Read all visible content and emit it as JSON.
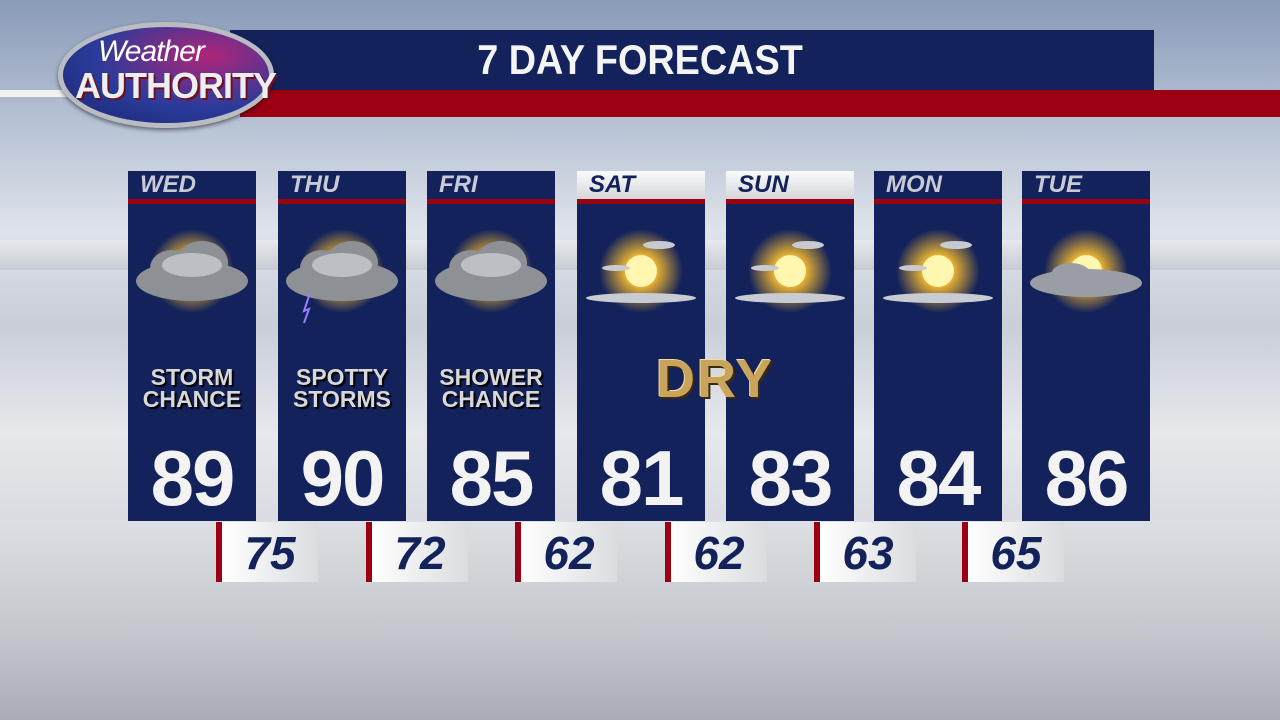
{
  "header": {
    "logo_line1": "Weather",
    "logo_line2": "AUTHORITY",
    "title": "7 DAY FORECAST"
  },
  "colors": {
    "navy": "#13225a",
    "red": "#9b0012",
    "gold": "#c9a45c"
  },
  "days": [
    {
      "day": "WED",
      "icon": "storm-cloud-sun-icon",
      "cond1": "STORM",
      "cond2": "CHANCE",
      "high": "89",
      "low": "75",
      "header_style": "dark"
    },
    {
      "day": "THU",
      "icon": "thunderstorm-sun-icon",
      "cond1": "SPOTTY",
      "cond2": "STORMS",
      "high": "90",
      "low": "72",
      "header_style": "dark"
    },
    {
      "day": "FRI",
      "icon": "rain-cloud-sun-icon",
      "cond1": "SHOWER",
      "cond2": "CHANCE",
      "high": "85",
      "low": "62",
      "header_style": "dark"
    },
    {
      "day": "SAT",
      "icon": "mostly-sunny-icon",
      "cond1": "",
      "cond2": "",
      "high": "81",
      "low": "62",
      "header_style": "light"
    },
    {
      "day": "SUN",
      "icon": "mostly-sunny-icon",
      "cond1": "",
      "cond2": "",
      "high": "83",
      "low": "63",
      "header_style": "light"
    },
    {
      "day": "MON",
      "icon": "mostly-sunny-icon",
      "cond1": "",
      "cond2": "",
      "high": "84",
      "low": "65",
      "header_style": "dark"
    },
    {
      "day": "TUE",
      "icon": "partly-cloudy-icon",
      "cond1": "",
      "cond2": "",
      "high": "86",
      "header_style": "dark"
    }
  ],
  "dry_label": "DRY"
}
